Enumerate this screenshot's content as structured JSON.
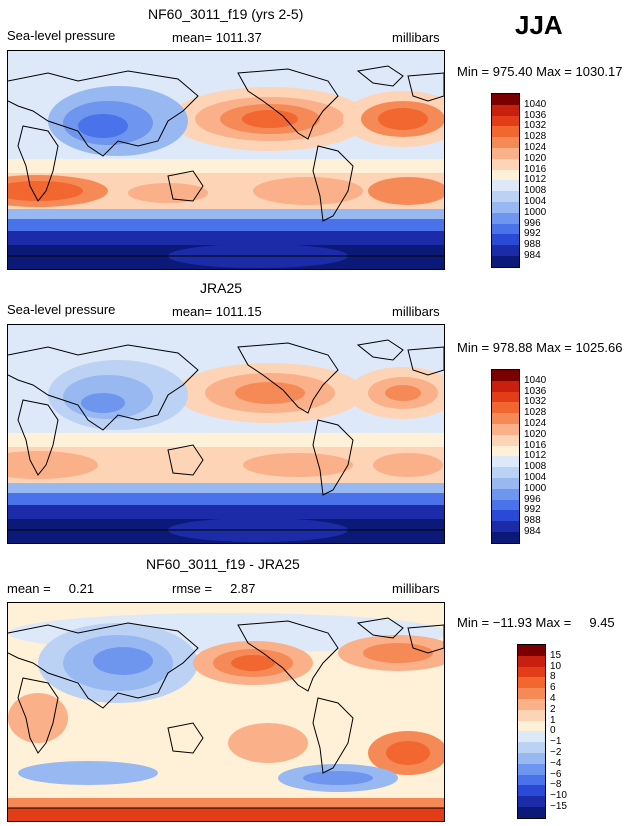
{
  "season": "JJA",
  "panels": [
    {
      "title": "NF60_3011_f19 (yrs 2-5)",
      "field": "Sea-level pressure",
      "stat": "mean= 1011.37",
      "units": "millibars",
      "minmax": "Min = 975.40 Max = 1030.17",
      "levels": [
        "1040",
        "1036",
        "1032",
        "1028",
        "1024",
        "1020",
        "1016",
        "1012",
        "1008",
        "1004",
        "1000",
        "996",
        "992",
        "988",
        "984"
      ],
      "colors": [
        "#7a0000",
        "#c8200e",
        "#e33d18",
        "#f2662f",
        "#f68a56",
        "#fab088",
        "#fdd4b6",
        "#fff0d8",
        "#dde8f9",
        "#bcd2f5",
        "#98b8f2",
        "#6f96ee",
        "#4a72ea",
        "#2a4ad6",
        "#1c2ca8",
        "#0b1a78"
      ]
    },
    {
      "title": "JRA25",
      "field": "Sea-level pressure",
      "stat": "mean= 1011.15",
      "units": "millibars",
      "minmax": "Min = 978.88 Max = 1025.66",
      "levels": [
        "1040",
        "1036",
        "1032",
        "1028",
        "1024",
        "1020",
        "1016",
        "1012",
        "1008",
        "1004",
        "1000",
        "996",
        "992",
        "988",
        "984"
      ],
      "colors": [
        "#7a0000",
        "#c8200e",
        "#e33d18",
        "#f2662f",
        "#f68a56",
        "#fab088",
        "#fdd4b6",
        "#fff0d8",
        "#dde8f9",
        "#bcd2f5",
        "#98b8f2",
        "#6f96ee",
        "#4a72ea",
        "#2a4ad6",
        "#1c2ca8",
        "#0b1a78"
      ]
    },
    {
      "title": "NF60_3011_f19 - JRA25",
      "field": "mean =     0.21",
      "stat": "rmse =     2.87",
      "units": "millibars",
      "minmax": "Min = −11.93 Max =     9.45",
      "levels": [
        "15",
        "10",
        "8",
        "6",
        "4",
        "2",
        "1",
        "0",
        "−1",
        "−2",
        "−4",
        "−6",
        "−8",
        "−10",
        "−15"
      ],
      "colors": [
        "#7a0000",
        "#c8200e",
        "#e33d18",
        "#f2662f",
        "#f68a56",
        "#fab088",
        "#fdd4b6",
        "#fff0d8",
        "#dde8f9",
        "#bcd2f5",
        "#98b8f2",
        "#6f96ee",
        "#4a72ea",
        "#2a4ad6",
        "#1c2ca8",
        "#0b1a78"
      ]
    }
  ]
}
